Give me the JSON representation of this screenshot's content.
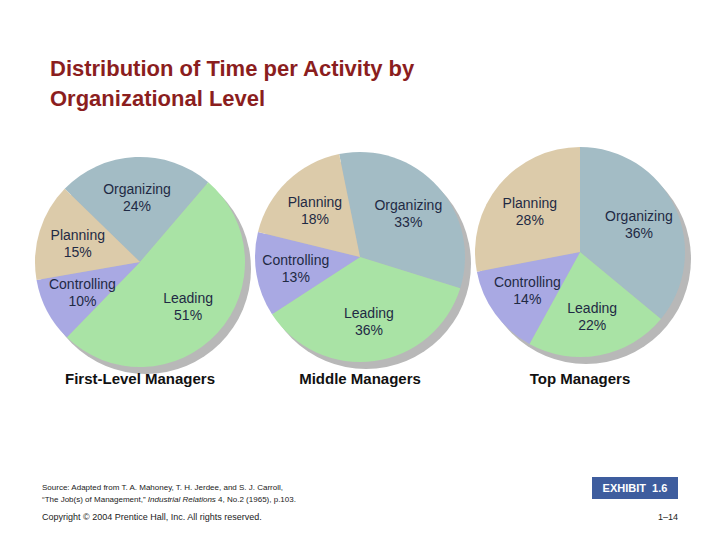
{
  "page": {
    "title": [
      "Distribution of Time per Activity by",
      "Organizational Level"
    ],
    "source_line1": "Source: Adapted from T. A. Mahoney, T. H. Jerdee, and S. J. Carroll,",
    "source_line2": [
      {
        "text": "“The Job(s) of Management,” "
      },
      {
        "text": "Industrial Relations",
        "italic": true
      },
      {
        "text": " 4, No.2 (1965), p.103."
      }
    ],
    "copyright": "Copyright © 2004 Prentice Hall, Inc. All rights reserved.",
    "exhibit": "EXHIBIT  1.6",
    "page_number": "1–14"
  },
  "chart_data": [
    {
      "type": "pie",
      "title": "First-Level Managers",
      "categories": [
        "Organizing",
        "Leading",
        "Controlling",
        "Planning"
      ],
      "values": [
        24,
        51,
        10,
        15
      ],
      "value_labels": [
        "24%",
        "51%",
        "10%",
        "15%"
      ],
      "colors": [
        "#a3bcc5",
        "#a9e3a5",
        "#a9a9e3",
        "#dccbaa"
      ],
      "data_labels": true
    },
    {
      "type": "pie",
      "title": "Middle Managers",
      "categories": [
        "Organizing",
        "Leading",
        "Controlling",
        "Planning"
      ],
      "values": [
        33,
        36,
        13,
        18
      ],
      "value_labels": [
        "33%",
        "36%",
        "13%",
        "18%"
      ],
      "colors": [
        "#a3bcc5",
        "#a9e3a5",
        "#a9a9e3",
        "#dccbaa"
      ],
      "data_labels": true
    },
    {
      "type": "pie",
      "title": "Top Managers",
      "categories": [
        "Organizing",
        "Leading",
        "Controlling",
        "Planning"
      ],
      "values": [
        36,
        22,
        14,
        28
      ],
      "value_labels": [
        "36%",
        "22%",
        "14%",
        "28%"
      ],
      "colors": [
        "#a3bcc5",
        "#a9e3a5",
        "#a9a9e3",
        "#dccbaa"
      ],
      "data_labels": true
    }
  ]
}
